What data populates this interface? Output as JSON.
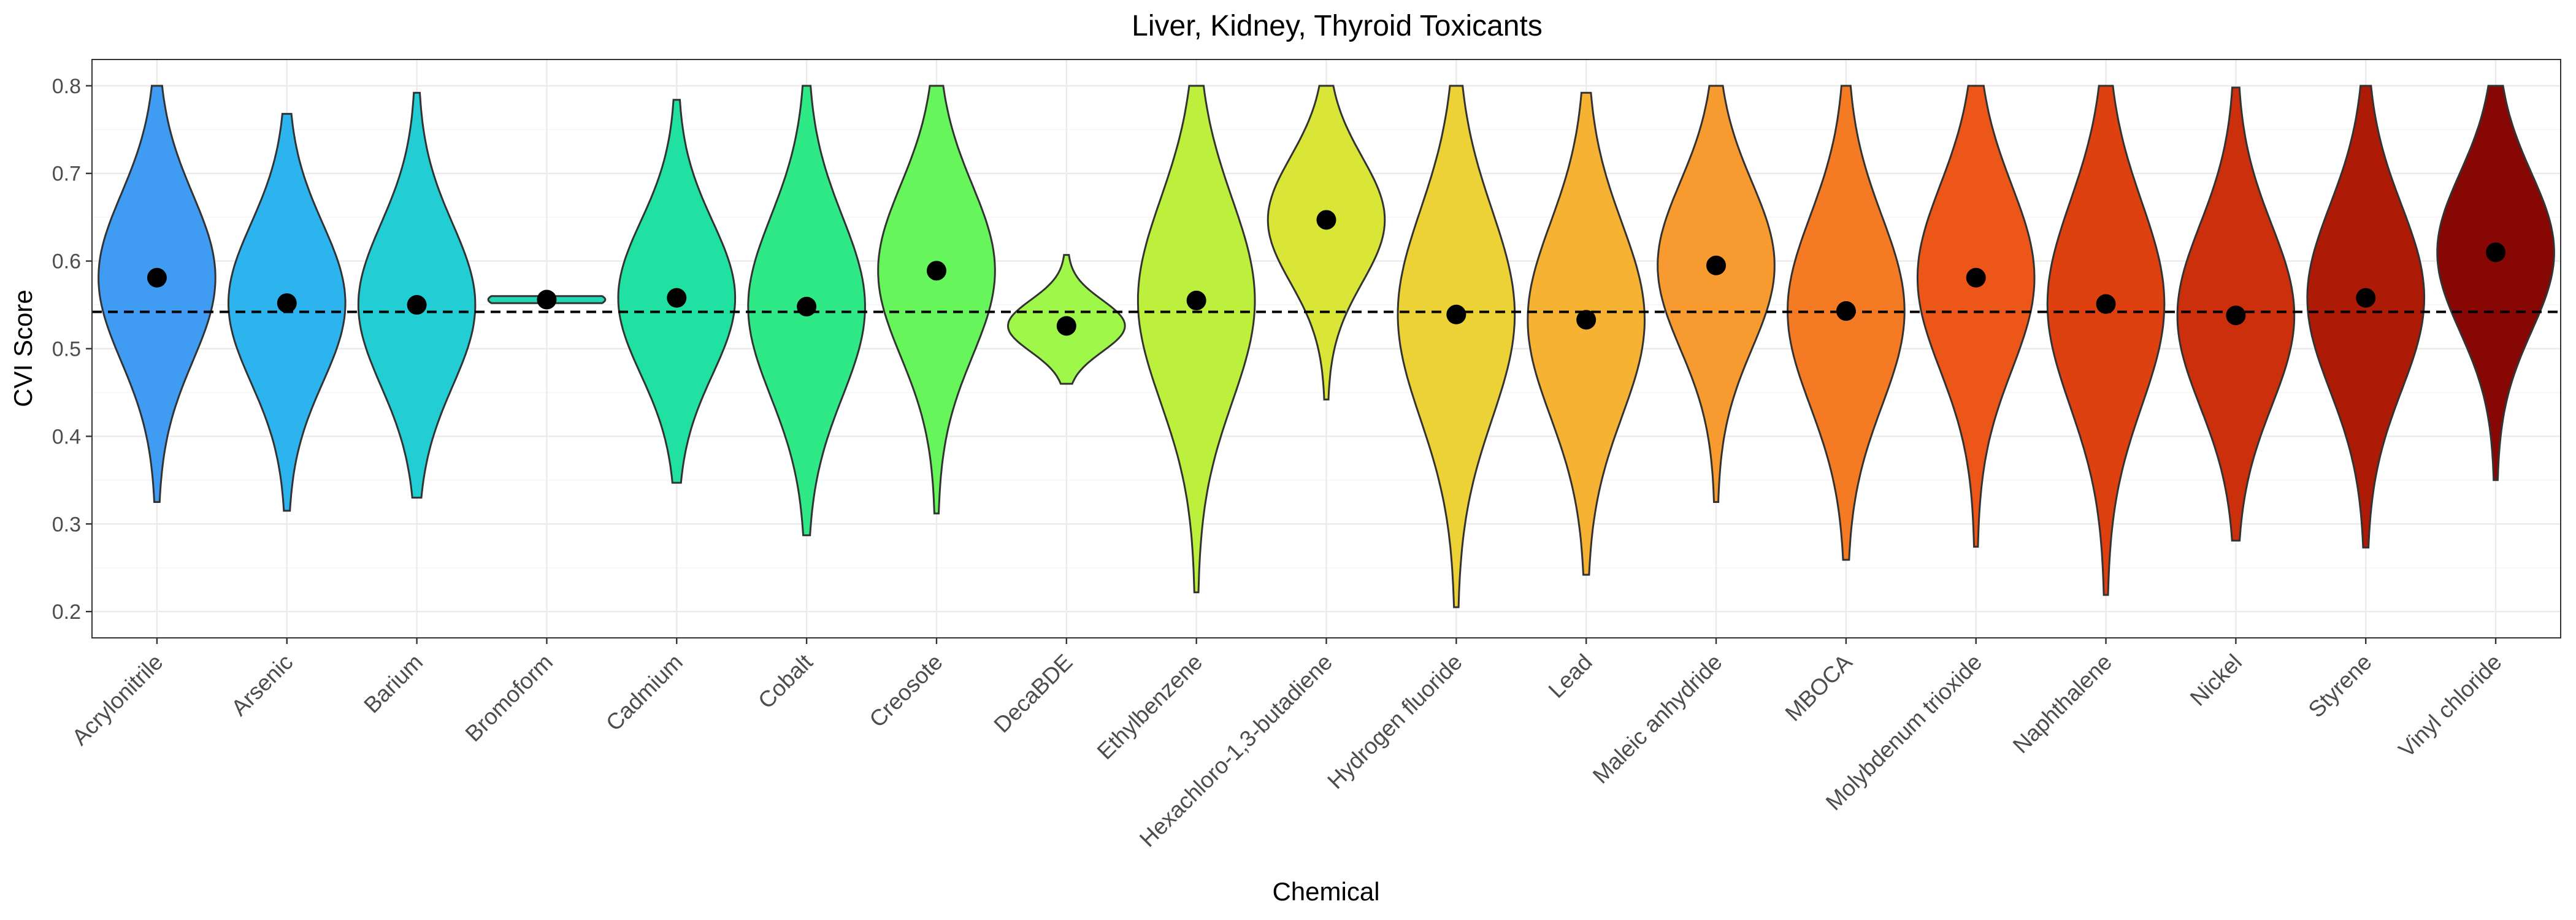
{
  "chart_data": {
    "type": "violin",
    "title": "Liver, Kidney, Thyroid Toxicants",
    "xlabel": "Chemical",
    "ylabel": "CVI Score",
    "ylim": [
      0.17,
      0.83
    ],
    "yticks": [
      0.2,
      0.3,
      0.4,
      0.5,
      0.6,
      0.7,
      0.8
    ],
    "ytick_labels": [
      "0.2",
      "0.3",
      "0.4",
      "0.5",
      "0.6",
      "0.7",
      "0.8"
    ],
    "grid": true,
    "reference_line": {
      "value": 0.542,
      "style": "dashed"
    },
    "categories": [
      "Acrylonitrile",
      "Arsenic",
      "Barium",
      "Bromoform",
      "Cadmium",
      "Cobalt",
      "Creosote",
      "DecaBDE",
      "Ethylbenzene",
      "Hexachloro-1,3-butadiene",
      "Hydrogen fluoride",
      "Lead",
      "Maleic anhydride",
      "MBOCA",
      "Molybdenum trioxide",
      "Naphthalene",
      "Nickel",
      "Styrene",
      "Vinyl chloride"
    ],
    "colors": [
      "#3f9cf2",
      "#2db4ee",
      "#22cdd4",
      "#23d7b4",
      "#20e1a2",
      "#2fe986",
      "#66f55a",
      "#9ef749",
      "#bcf03c",
      "#d9e637",
      "#ecd237",
      "#f6b233",
      "#f79a30",
      "#f47a24",
      "#ec5618",
      "#df4010",
      "#cc2f0b",
      "#ad1a06",
      "#870705"
    ],
    "means": [
      0.581,
      0.552,
      0.55,
      0.556,
      0.558,
      0.548,
      0.589,
      0.526,
      0.555,
      0.647,
      0.539,
      0.533,
      0.595,
      0.543,
      0.581,
      0.551,
      0.538,
      0.558,
      0.61
    ],
    "ranges": [
      [
        0.325,
        0.8
      ],
      [
        0.315,
        0.768
      ],
      [
        0.33,
        0.792
      ],
      [
        0.552,
        0.56
      ],
      [
        0.347,
        0.784
      ],
      [
        0.287,
        0.8
      ],
      [
        0.312,
        0.8
      ],
      [
        0.46,
        0.607
      ],
      [
        0.222,
        0.8
      ],
      [
        0.442,
        0.8
      ],
      [
        0.205,
        0.8
      ],
      [
        0.242,
        0.792
      ],
      [
        0.325,
        0.8
      ],
      [
        0.259,
        0.8
      ],
      [
        0.274,
        0.8
      ],
      [
        0.219,
        0.8
      ],
      [
        0.281,
        0.798
      ],
      [
        0.273,
        0.8
      ],
      [
        0.35,
        0.8
      ]
    ]
  }
}
